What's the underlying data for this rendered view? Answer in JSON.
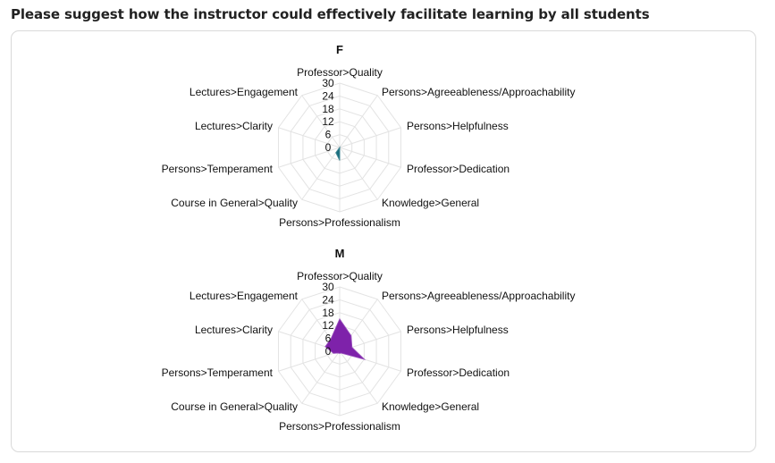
{
  "heading": "Please suggest how the instructor could effectively facilitate learning by all students",
  "chart_data": [
    {
      "type": "radar",
      "title": "F",
      "color": "#1a6e7e",
      "axes": [
        "Professor>Quality",
        "Persons>Agreeableness/Approachability",
        "Persons>Helpfulness",
        "Professor>Dedication",
        "Knowledge>General",
        "Persons>Professionalism",
        "Course in General>Quality",
        "Persons>Temperament",
        "Lectures>Clarity",
        "Lectures>Engagement"
      ],
      "ticks": [
        "30",
        "24",
        "18",
        "12",
        "6",
        "0"
      ],
      "range": [
        0,
        30
      ],
      "grid": true,
      "series": [
        {
          "values": [
            0,
            0,
            0,
            0,
            0,
            6,
            3,
            0,
            0,
            0
          ]
        }
      ]
    },
    {
      "type": "radar",
      "title": "M",
      "color": "#7e22aa",
      "axes": [
        "Professor>Quality",
        "Persons>Agreeableness/Approachability",
        "Persons>Helpfulness",
        "Professor>Dedication",
        "Knowledge>General",
        "Persons>Professionalism",
        "Course in General>Quality",
        "Persons>Temperament",
        "Lectures>Clarity",
        "Lectures>Engagement"
      ],
      "ticks": [
        "30",
        "24",
        "18",
        "12",
        "6",
        "0"
      ],
      "range": [
        0,
        30
      ],
      "grid": true,
      "series": [
        {
          "values": [
            15,
            9,
            6,
            12,
            1,
            1,
            1,
            3,
            7,
            7
          ]
        }
      ]
    }
  ]
}
